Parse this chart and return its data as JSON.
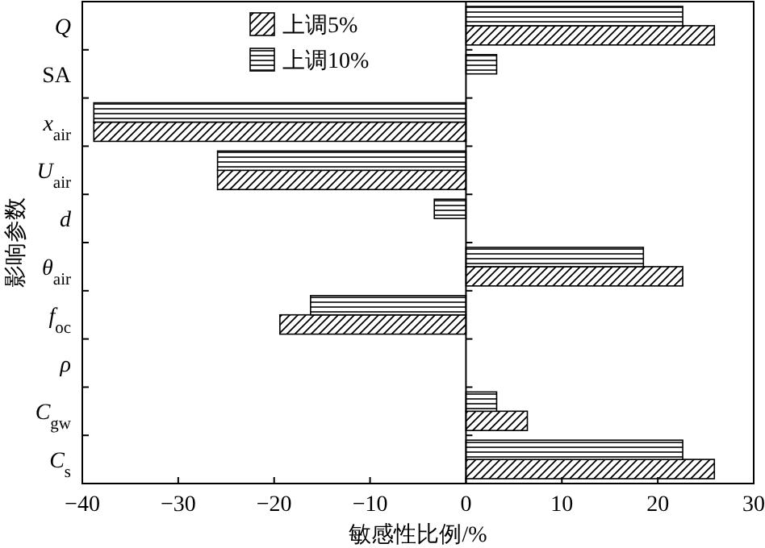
{
  "chart_data": {
    "type": "bar",
    "orientation": "horizontal",
    "xlabel": "敏感性比例/%",
    "ylabel": "影响参数",
    "categories": [
      "Q",
      "SA",
      "x$_{air}$",
      "U$_{air}$",
      "d",
      "θ$_{air}$",
      "f$_{oc}$",
      "ρ",
      "C$_{gw}$",
      "C$_{s}$"
    ],
    "series": [
      {
        "name": "上调5%",
        "color": "#000000",
        "values": [
          25.9,
          0,
          -38.8,
          -25.9,
          0,
          22.6,
          -19.4,
          0,
          6.4,
          25.9
        ]
      },
      {
        "name": "上调10%",
        "color": "#000000",
        "values": [
          22.6,
          3.2,
          -38.8,
          -25.9,
          -3.3,
          18.5,
          -16.2,
          0,
          3.2,
          22.6
        ]
      }
    ],
    "xlim": [
      -40,
      30
    ],
    "xticks": [
      -40,
      -30,
      -20,
      -10,
      0,
      10,
      20,
      30
    ],
    "ref_lines": [
      {
        "axis": "x",
        "value": 0
      }
    ],
    "grid": false,
    "legend": "top"
  }
}
